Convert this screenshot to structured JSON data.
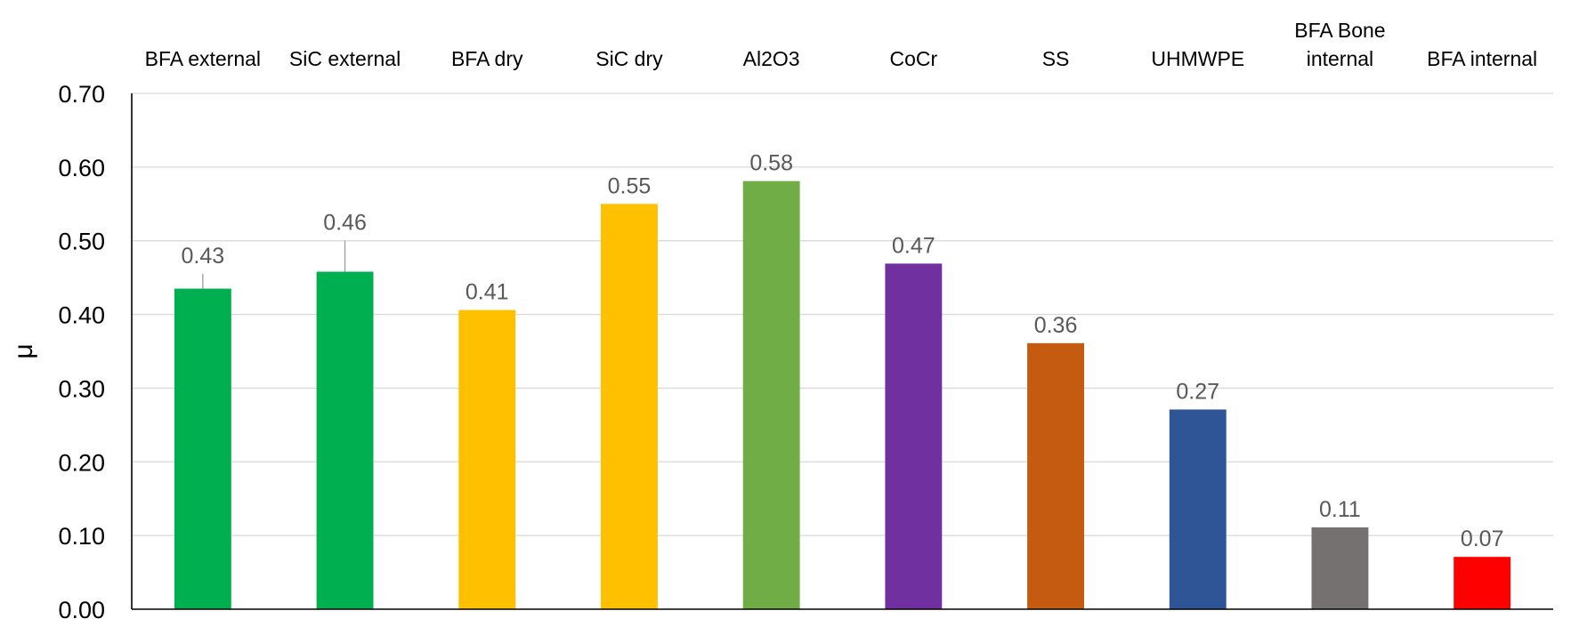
{
  "chart_data": {
    "type": "bar",
    "title": "",
    "xlabel": "",
    "ylabel": "μ",
    "ylim": [
      0,
      0.7
    ],
    "ytick_step": 0.1,
    "grid": true,
    "categories": [
      [
        "BFA external"
      ],
      [
        "SiC external"
      ],
      [
        "BFA dry"
      ],
      [
        "SiC dry"
      ],
      [
        "Al2O3"
      ],
      [
        "CoCr"
      ],
      [
        "SS"
      ],
      [
        "UHMWPE"
      ],
      [
        "BFA Bone",
        "internal"
      ],
      [
        "BFA internal"
      ]
    ],
    "values": [
      0.435,
      0.458,
      0.406,
      0.55,
      0.581,
      0.469,
      0.361,
      0.271,
      0.111,
      0.071
    ],
    "data_labels": [
      "0.43",
      "0.46",
      "0.41",
      "0.55",
      "0.58",
      "0.47",
      "0.36",
      "0.27",
      "0.11",
      "0.07"
    ],
    "error_upper": [
      0.02,
      0.042,
      null,
      null,
      null,
      null,
      null,
      null,
      null,
      null
    ],
    "colors": [
      "#00b050",
      "#00b050",
      "#ffc000",
      "#ffc000",
      "#70ad47",
      "#7030a0",
      "#c55a11",
      "#2f5597",
      "#767171",
      "#ff0000"
    ],
    "ytick_labels": [
      "0.00",
      "0.10",
      "0.20",
      "0.30",
      "0.40",
      "0.50",
      "0.60",
      "0.70"
    ]
  }
}
